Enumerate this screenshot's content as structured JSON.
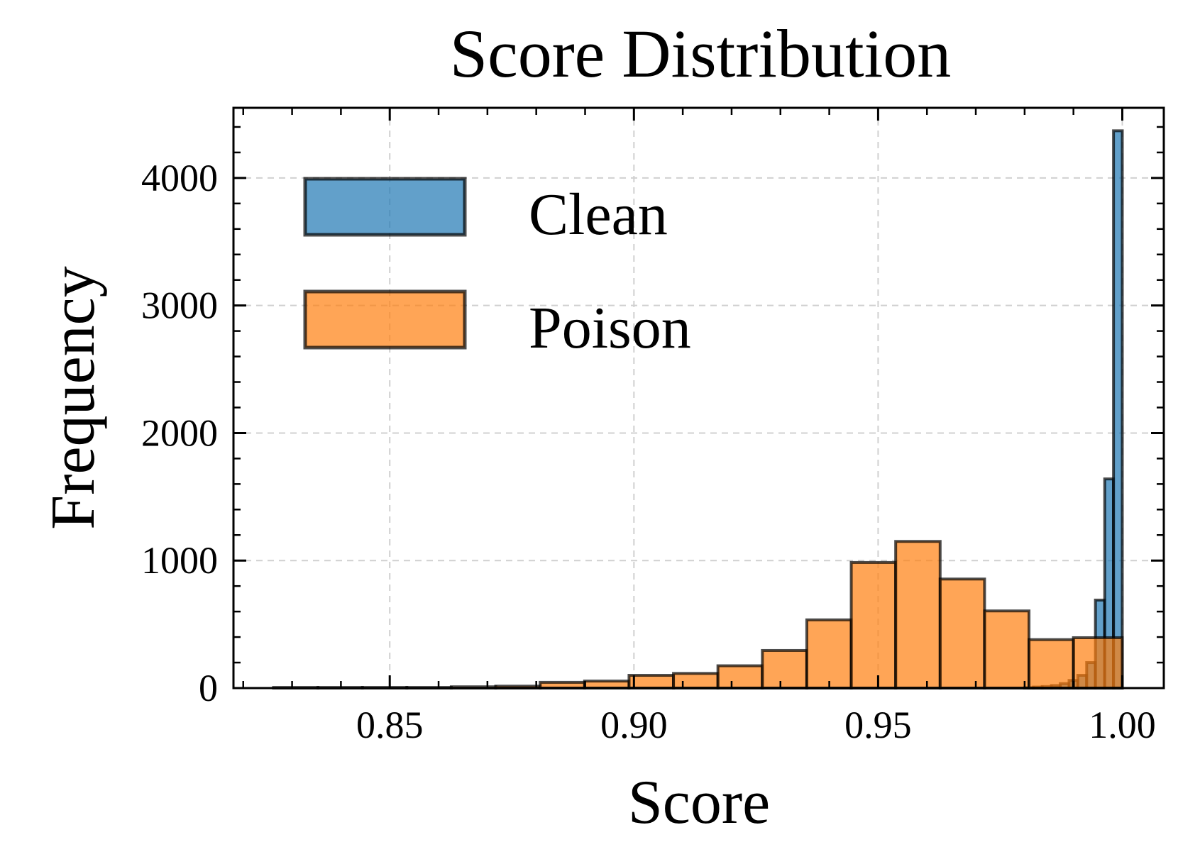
{
  "chart_data": {
    "type": "bar",
    "title": "Score Distribution",
    "xlabel": "Score",
    "ylabel": "Frequency",
    "xlim": [
      0.818,
      1.0085
    ],
    "ylim": [
      0,
      4550
    ],
    "x_ticks": [
      0.85,
      0.9,
      0.95,
      1.0
    ],
    "x_tick_labels": [
      "0.85",
      "0.90",
      "0.95",
      "1.00"
    ],
    "y_ticks": [
      0,
      1000,
      2000,
      3000,
      4000
    ],
    "y_tick_labels": [
      "0",
      "1000",
      "2000",
      "3000",
      "4000"
    ],
    "grid": true,
    "legend_position": "top-left",
    "series": [
      {
        "name": "Clean",
        "color": "#1f77b4",
        "bin_edges": [
          0.98,
          0.9818,
          0.9836,
          0.9855,
          0.9873,
          0.9891,
          0.9909,
          0.9927,
          0.9945,
          0.9964,
          0.9982,
          1.0
        ],
        "counts": [
          3,
          8,
          12,
          20,
          35,
          60,
          100,
          200,
          690,
          1640,
          4370
        ]
      },
      {
        "name": "Poison",
        "color": "#ff7f0e",
        "bin_edges": [
          0.8262,
          0.8353,
          0.8444,
          0.8535,
          0.8626,
          0.8717,
          0.8808,
          0.8899,
          0.899,
          0.9081,
          0.9172,
          0.9263,
          0.9354,
          0.9445,
          0.9536,
          0.9627,
          0.9718,
          0.9809,
          0.99,
          1.0
        ],
        "counts": [
          5,
          5,
          5,
          5,
          10,
          15,
          45,
          55,
          100,
          115,
          175,
          295,
          535,
          985,
          1150,
          855,
          605,
          380,
          395
        ]
      }
    ]
  }
}
